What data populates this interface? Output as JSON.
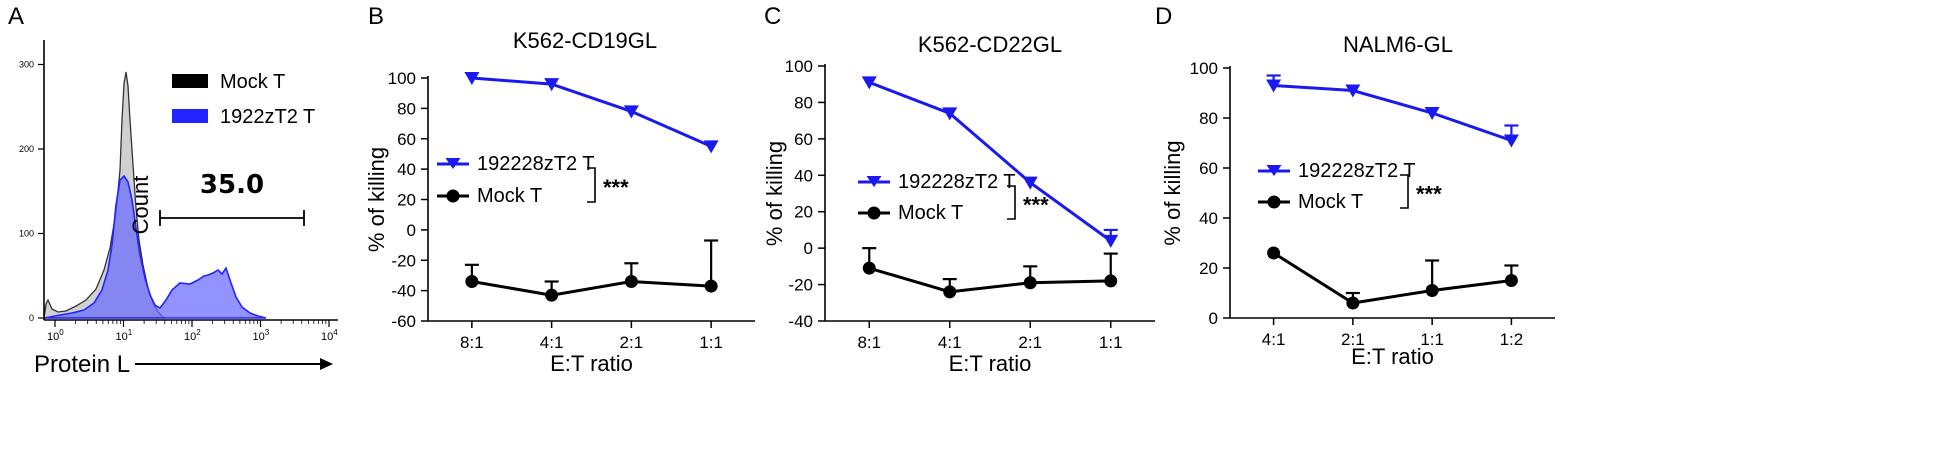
{
  "histogram": {
    "letter": "A",
    "y_ticks": [
      "0",
      "100",
      "200",
      "300"
    ],
    "x_tick_base": "10",
    "x_tick_exps": [
      "0",
      "1",
      "2",
      "3",
      "4"
    ],
    "y_label": "Count",
    "x_label": "Protein L",
    "gate_value": "35.0",
    "legend": [
      {
        "label": "Mock T",
        "color": "#000000"
      },
      {
        "label": "1922zT2 T",
        "color": "#2323ff"
      }
    ]
  },
  "chart_data": [
    {
      "type": "line",
      "letter": "B",
      "title": "K562-CD19GL",
      "xlabel": "E:T ratio",
      "ylabel": "% of killing",
      "categories": [
        "8:1",
        "4:1",
        "2:1",
        "1:1"
      ],
      "ylim": [
        -60,
        100
      ],
      "yticks": [
        -60,
        -40,
        -20,
        0,
        20,
        40,
        60,
        80,
        100
      ],
      "series": [
        {
          "name": "192228zT2 T",
          "color": "#1a1aee",
          "marker": "triangle-down",
          "values": [
            100,
            96,
            78,
            55
          ],
          "err": [
            0,
            0,
            0,
            0
          ]
        },
        {
          "name": "Mock T",
          "color": "#000000",
          "marker": "circle",
          "values": [
            -34,
            -43,
            -34,
            -37
          ],
          "err": [
            11,
            9,
            12,
            30
          ]
        }
      ],
      "significance": "***"
    },
    {
      "type": "line",
      "letter": "C",
      "title": "K562-CD22GL",
      "xlabel": "E:T ratio",
      "ylabel": "% of killing",
      "categories": [
        "8:1",
        "4:1",
        "2:1",
        "1:1"
      ],
      "ylim": [
        -40,
        100
      ],
      "yticks": [
        -40,
        -20,
        0,
        20,
        40,
        60,
        80,
        100
      ],
      "series": [
        {
          "name": "192228zT2 T",
          "color": "#1a1aee",
          "marker": "triangle-down",
          "values": [
            91,
            74,
            36,
            4
          ],
          "err": [
            0,
            0,
            0,
            6
          ]
        },
        {
          "name": "Mock T",
          "color": "#000000",
          "marker": "circle",
          "values": [
            -11,
            -24,
            -19,
            -18
          ],
          "err": [
            11,
            7,
            9,
            15
          ]
        }
      ],
      "significance": "***"
    },
    {
      "type": "line",
      "letter": "D",
      "title": "NALM6-GL",
      "xlabel": "E:T ratio",
      "ylabel": "% of killing",
      "categories": [
        "4:1",
        "2:1",
        "1:1",
        "1:2"
      ],
      "ylim": [
        0,
        100
      ],
      "yticks": [
        0,
        20,
        40,
        60,
        80,
        100
      ],
      "series": [
        {
          "name": "192228zT2 T",
          "color": "#1a1aee",
          "marker": "triangle-down",
          "values": [
            93,
            91,
            82,
            71
          ],
          "err": [
            4,
            0,
            0,
            6
          ]
        },
        {
          "name": "Mock T",
          "color": "#000000",
          "marker": "circle",
          "values": [
            26,
            6,
            11,
            15
          ],
          "err": [
            0,
            4,
            12,
            6
          ]
        }
      ],
      "significance": "***"
    }
  ]
}
